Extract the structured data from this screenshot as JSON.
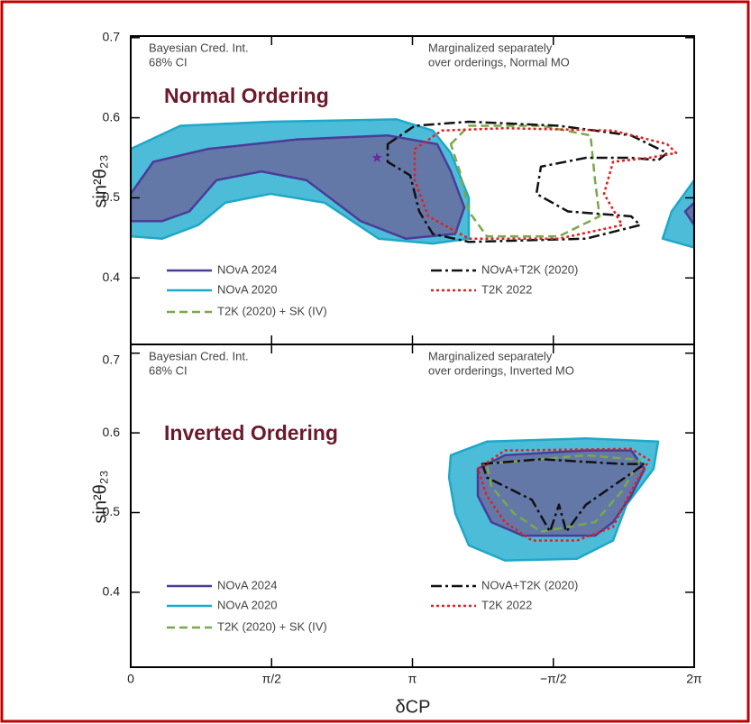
{
  "chart_data": [
    {
      "type": "contour",
      "panel": "top",
      "annotations": [
        "Bayesian Cred. Int.",
        "68% CI",
        "Marginalized separately",
        "over orderings, Normal MO"
      ],
      "title": "Normal Ordering",
      "y_label": "sin²θ₂₃",
      "xlim": [
        0,
        2
      ],
      "ylim": [
        0.317,
        0.702
      ],
      "xticks": [
        0,
        {
          "value": 0.5,
          "label": "π/2"
        },
        {
          "value": 1,
          "label": "π"
        },
        {
          "value": 1.5,
          "label": "−π/2"
        },
        {
          "value": 2,
          "label": "2π"
        }
      ],
      "yticks": [
        0.4,
        0.5,
        0.6,
        0.7
      ],
      "best_fit": {
        "x": 0.874,
        "y": 0.55,
        "color": "#6a2aa0"
      },
      "series": [
        {
          "name": "NOvA 2024",
          "color": "#4a3c98",
          "fill_color": "#6478a8",
          "line_style": "solid",
          "x": [
            0,
            0.08,
            0.272,
            0.592,
            0.912,
            1.088,
            1.136,
            1.184,
            1.152,
            0.976,
            0.816,
            0.624,
            0.464,
            0.304,
            0.208,
            0.112,
            0,
            null,
            2,
            1.968,
            2
          ],
          "y": [
            0.505,
            0.545,
            0.561,
            0.573,
            0.578,
            0.567,
            0.533,
            0.488,
            0.455,
            0.449,
            0.471,
            0.522,
            0.533,
            0.522,
            0.483,
            0.471,
            0.471,
            null,
            0.494,
            0.483,
            0.466
          ]
        },
        {
          "name": "NOvA 2020",
          "color": "#1ea8c8",
          "fill_color": "#4cbcd8",
          "line_style": "solid",
          "x": [
            0,
            0.176,
            0.496,
            0.944,
            1.072,
            1.136,
            1.2,
            1.2,
            1.072,
            0.88,
            0.688,
            0.496,
            0.336,
            0.24,
            0.112,
            0,
            null,
            2,
            1.92,
            1.888,
            2
          ],
          "y": [
            0.561,
            0.59,
            0.595,
            0.598,
            0.584,
            0.556,
            0.5,
            0.449,
            0.443,
            0.449,
            0.494,
            0.505,
            0.494,
            0.466,
            0.449,
            0.452,
            null,
            0.522,
            0.483,
            0.449,
            0.438
          ]
        },
        {
          "name": "T2K (2020) + SK (IV)",
          "color": "#7aa84a",
          "line_style": "dashed",
          "x": [
            1.136,
            1.2,
            1.456,
            1.632,
            1.648,
            1.664,
            1.52,
            1.264,
            1.2,
            1.168
          ],
          "y": [
            0.567,
            0.59,
            0.59,
            0.578,
            0.522,
            0.477,
            0.452,
            0.452,
            0.483,
            0.533
          ]
        },
        {
          "name": "NOvA+T2K (2020)",
          "color": "#111111",
          "line_style": "dashdot",
          "x": [
            0.912,
            1.008,
            1.2,
            1.52,
            1.776,
            1.904,
            1.872,
            1.776,
            1.616,
            1.456,
            1.44,
            1.552,
            1.776,
            1.808,
            1.616,
            1.2,
            1.072,
            1.024,
            0.992,
            0.912
          ],
          "y": [
            0.567,
            0.59,
            0.595,
            0.59,
            0.578,
            0.556,
            0.547,
            0.55,
            0.55,
            0.539,
            0.505,
            0.483,
            0.477,
            0.466,
            0.449,
            0.445,
            0.455,
            0.483,
            0.528,
            0.545
          ]
        },
        {
          "name": "T2K 2022",
          "color": "#e02020",
          "line_style": "dotted",
          "x": [
            1.008,
            1.104,
            1.328,
            1.712,
            1.904,
            1.936,
            1.84,
            1.712,
            1.68,
            1.744,
            1.52,
            1.2,
            1.056,
            1.008
          ],
          "y": [
            0.561,
            0.584,
            0.587,
            0.584,
            0.567,
            0.556,
            0.55,
            0.545,
            0.505,
            0.466,
            0.449,
            0.449,
            0.477,
            0.522
          ]
        }
      ]
    },
    {
      "type": "contour",
      "panel": "bottom",
      "annotations": [
        "Bayesian Cred. Int.",
        "68% CI",
        "Marginalized separately",
        "over orderings, Inverted MO"
      ],
      "title": "Inverted Ordering",
      "y_label": "sin²θ₂₃",
      "x_label": "δCP",
      "xlim": [
        0,
        2
      ],
      "ylim": [
        0.306,
        0.711
      ],
      "xticks": [
        0,
        {
          "value": 0.5,
          "label": "π/2"
        },
        {
          "value": 1,
          "label": "π"
        },
        {
          "value": 1.5,
          "label": "−π/2"
        },
        {
          "value": 2,
          "label": "2π"
        }
      ],
      "yticks": [
        0.4,
        0.5,
        0.6,
        0.7
      ],
      "series": [
        {
          "name": "NOvA 2024",
          "color": "#4a3c98",
          "fill_color": "#6478a8",
          "line_style": "solid",
          "x": [
            1.232,
            1.328,
            1.616,
            1.776,
            1.824,
            1.776,
            1.712,
            1.648,
            1.392,
            1.28,
            1.232
          ],
          "y": [
            0.555,
            0.572,
            0.578,
            0.578,
            0.555,
            0.521,
            0.488,
            0.471,
            0.471,
            0.488,
            0.521
          ]
        },
        {
          "name": "NOvA 2020",
          "color": "#1ea8c8",
          "fill_color": "#4cbcd8",
          "line_style": "solid",
          "x": [
            1.136,
            1.264,
            1.616,
            1.872,
            1.856,
            1.76,
            1.712,
            1.584,
            1.328,
            1.2,
            1.152,
            1.13
          ],
          "y": [
            0.572,
            0.589,
            0.593,
            0.589,
            0.555,
            0.51,
            0.465,
            0.442,
            0.44,
            0.459,
            0.499,
            0.544
          ]
        },
        {
          "name": "T2K (2020) + SK (IV)",
          "color": "#7aa84a",
          "line_style": "dashed",
          "x": [
            1.264,
            1.616,
            1.808,
            1.744,
            1.648,
            1.456,
            1.36,
            1.28
          ],
          "y": [
            0.561,
            0.572,
            0.566,
            0.527,
            0.488,
            0.476,
            0.499,
            0.533
          ]
        },
        {
          "name": "NOvA+T2K (2020)",
          "color": "#111111",
          "line_style": "dashdot",
          "x": [
            1.248,
            1.456,
            1.744,
            1.824,
            1.616,
            1.546,
            1.52,
            1.488,
            1.424,
            1.264
          ],
          "y": [
            0.561,
            0.567,
            0.561,
            0.561,
            0.51,
            0.476,
            0.51,
            0.476,
            0.516,
            0.544
          ]
        },
        {
          "name": "T2K 2022",
          "color": "#e02020",
          "line_style": "dotted",
          "x": [
            1.232,
            1.328,
            1.776,
            1.84,
            1.776,
            1.712,
            1.584,
            1.424,
            1.328,
            1.264
          ],
          "y": [
            0.555,
            0.578,
            0.58,
            0.566,
            0.527,
            0.482,
            0.465,
            0.465,
            0.488,
            0.521
          ]
        }
      ]
    }
  ]
}
